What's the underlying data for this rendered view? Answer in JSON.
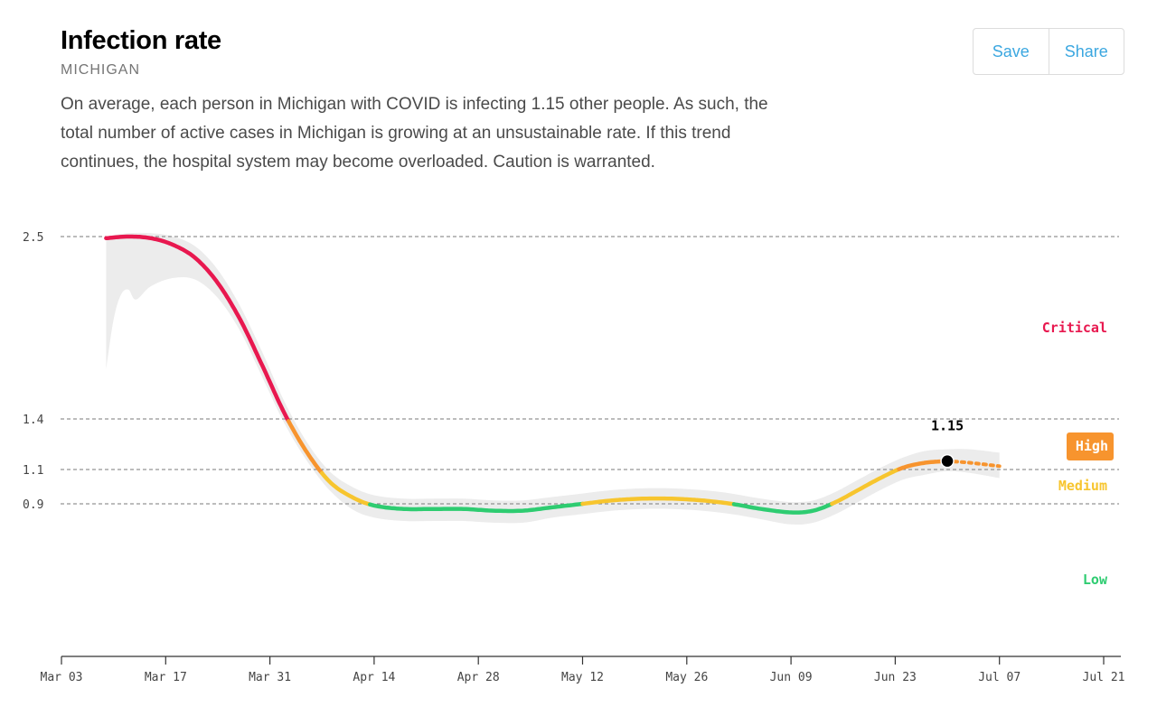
{
  "header": {
    "title": "Infection rate",
    "subtitle": "MICHIGAN",
    "description": "On average, each person in Michigan with COVID is infecting 1.15 other people. As such, the total number of active cases in Michigan is growing at an unsustainable rate. If this trend continues, the hospital system may become overloaded. Caution is warranted."
  },
  "actions": {
    "save_label": "Save",
    "share_label": "Share"
  },
  "chart_data": {
    "type": "line",
    "title": "Infection rate",
    "xlabel": "",
    "ylabel": "",
    "x_ticks": [
      "Mar 03",
      "Mar 17",
      "Mar 31",
      "Apr 14",
      "Apr 28",
      "May 12",
      "May 26",
      "Jun 09",
      "Jun 23",
      "Jul 07",
      "Jul 21"
    ],
    "y_ticks": [
      0.9,
      1.1,
      1.4,
      2.5
    ],
    "y_tick_labels": [
      "0.9",
      "1.1",
      "1.4",
      "2.5"
    ],
    "xlim": [
      "2020-03-03",
      "2020-07-21"
    ],
    "grid": "dashed horizontal lines at thresholds",
    "zones": [
      {
        "label": "Critical",
        "color": "#e8184f",
        "min": 1.4
      },
      {
        "label": "High",
        "color": "#f7942e",
        "min": 1.1,
        "max": 1.4,
        "badge": true
      },
      {
        "label": "Medium",
        "color": "#f7c52e",
        "min": 0.9,
        "max": 1.1
      },
      {
        "label": "Low",
        "color": "#2ecc71",
        "max": 0.9
      }
    ],
    "series": [
      {
        "points": [
          {
            "date": "2020-03-09",
            "y": 2.49
          },
          {
            "date": "2020-03-12",
            "y": 2.5
          },
          {
            "date": "2020-03-15",
            "y": 2.49
          },
          {
            "date": "2020-03-18",
            "y": 2.45
          },
          {
            "date": "2020-03-21",
            "y": 2.37
          },
          {
            "date": "2020-03-24",
            "y": 2.22
          },
          {
            "date": "2020-03-27",
            "y": 2.0
          },
          {
            "date": "2020-03-30",
            "y": 1.72
          },
          {
            "date": "2020-04-02",
            "y": 1.43
          },
          {
            "date": "2020-04-05",
            "y": 1.2
          },
          {
            "date": "2020-04-08",
            "y": 1.03
          },
          {
            "date": "2020-04-11",
            "y": 0.94
          },
          {
            "date": "2020-04-14",
            "y": 0.89
          },
          {
            "date": "2020-04-18",
            "y": 0.87
          },
          {
            "date": "2020-04-22",
            "y": 0.87
          },
          {
            "date": "2020-04-26",
            "y": 0.87
          },
          {
            "date": "2020-04-30",
            "y": 0.86
          },
          {
            "date": "2020-05-04",
            "y": 0.86
          },
          {
            "date": "2020-05-08",
            "y": 0.88
          },
          {
            "date": "2020-05-12",
            "y": 0.9
          },
          {
            "date": "2020-05-16",
            "y": 0.92
          },
          {
            "date": "2020-05-20",
            "y": 0.93
          },
          {
            "date": "2020-05-24",
            "y": 0.93
          },
          {
            "date": "2020-05-28",
            "y": 0.92
          },
          {
            "date": "2020-06-01",
            "y": 0.9
          },
          {
            "date": "2020-06-05",
            "y": 0.87
          },
          {
            "date": "2020-06-09",
            "y": 0.85
          },
          {
            "date": "2020-06-12",
            "y": 0.86
          },
          {
            "date": "2020-06-15",
            "y": 0.91
          },
          {
            "date": "2020-06-18",
            "y": 0.98
          },
          {
            "date": "2020-06-21",
            "y": 1.05
          },
          {
            "date": "2020-06-24",
            "y": 1.11
          },
          {
            "date": "2020-06-27",
            "y": 1.14
          },
          {
            "date": "2020-06-30",
            "y": 1.15
          }
        ],
        "forecast": [
          {
            "date": "2020-06-30",
            "y": 1.15
          },
          {
            "date": "2020-07-03",
            "y": 1.14
          },
          {
            "date": "2020-07-07",
            "y": 1.12
          }
        ],
        "band_lower": [
          {
            "date": "2020-03-09",
            "y": 1.7
          },
          {
            "date": "2020-03-10",
            "y": 2.0
          },
          {
            "date": "2020-03-11",
            "y": 2.15
          },
          {
            "date": "2020-03-12",
            "y": 2.18
          },
          {
            "date": "2020-03-13",
            "y": 2.12
          },
          {
            "date": "2020-03-15",
            "y": 2.2
          },
          {
            "date": "2020-03-18",
            "y": 2.25
          },
          {
            "date": "2020-03-21",
            "y": 2.24
          },
          {
            "date": "2020-03-24",
            "y": 2.13
          },
          {
            "date": "2020-03-27",
            "y": 1.93
          },
          {
            "date": "2020-03-30",
            "y": 1.65
          },
          {
            "date": "2020-04-02",
            "y": 1.37
          },
          {
            "date": "2020-04-05",
            "y": 1.15
          },
          {
            "date": "2020-04-08",
            "y": 0.98
          },
          {
            "date": "2020-04-11",
            "y": 0.87
          },
          {
            "date": "2020-04-14",
            "y": 0.82
          },
          {
            "date": "2020-04-18",
            "y": 0.8
          },
          {
            "date": "2020-04-22",
            "y": 0.8
          },
          {
            "date": "2020-04-26",
            "y": 0.8
          },
          {
            "date": "2020-04-30",
            "y": 0.79
          },
          {
            "date": "2020-05-04",
            "y": 0.79
          },
          {
            "date": "2020-05-08",
            "y": 0.82
          },
          {
            "date": "2020-05-12",
            "y": 0.84
          },
          {
            "date": "2020-05-16",
            "y": 0.86
          },
          {
            "date": "2020-05-20",
            "y": 0.87
          },
          {
            "date": "2020-05-24",
            "y": 0.87
          },
          {
            "date": "2020-05-28",
            "y": 0.86
          },
          {
            "date": "2020-06-01",
            "y": 0.84
          },
          {
            "date": "2020-06-05",
            "y": 0.81
          },
          {
            "date": "2020-06-09",
            "y": 0.78
          },
          {
            "date": "2020-06-12",
            "y": 0.79
          },
          {
            "date": "2020-06-15",
            "y": 0.84
          },
          {
            "date": "2020-06-18",
            "y": 0.91
          },
          {
            "date": "2020-06-21",
            "y": 0.98
          },
          {
            "date": "2020-06-24",
            "y": 1.04
          },
          {
            "date": "2020-06-27",
            "y": 1.07
          },
          {
            "date": "2020-06-30",
            "y": 1.09
          },
          {
            "date": "2020-07-03",
            "y": 1.08
          },
          {
            "date": "2020-07-07",
            "y": 1.05
          }
        ],
        "band_upper": [
          {
            "date": "2020-03-09",
            "y": 2.5
          },
          {
            "date": "2020-03-12",
            "y": 2.52
          },
          {
            "date": "2020-03-15",
            "y": 2.52
          },
          {
            "date": "2020-03-18",
            "y": 2.5
          },
          {
            "date": "2020-03-21",
            "y": 2.44
          },
          {
            "date": "2020-03-24",
            "y": 2.3
          },
          {
            "date": "2020-03-27",
            "y": 2.08
          },
          {
            "date": "2020-03-30",
            "y": 1.8
          },
          {
            "date": "2020-04-02",
            "y": 1.5
          },
          {
            "date": "2020-04-05",
            "y": 1.26
          },
          {
            "date": "2020-04-08",
            "y": 1.09
          },
          {
            "date": "2020-04-11",
            "y": 1.0
          },
          {
            "date": "2020-04-14",
            "y": 0.95
          },
          {
            "date": "2020-04-18",
            "y": 0.93
          },
          {
            "date": "2020-04-22",
            "y": 0.93
          },
          {
            "date": "2020-04-26",
            "y": 0.93
          },
          {
            "date": "2020-04-30",
            "y": 0.92
          },
          {
            "date": "2020-05-04",
            "y": 0.92
          },
          {
            "date": "2020-05-08",
            "y": 0.94
          },
          {
            "date": "2020-05-12",
            "y": 0.96
          },
          {
            "date": "2020-05-16",
            "y": 0.98
          },
          {
            "date": "2020-05-20",
            "y": 0.99
          },
          {
            "date": "2020-05-24",
            "y": 0.99
          },
          {
            "date": "2020-05-28",
            "y": 0.98
          },
          {
            "date": "2020-06-01",
            "y": 0.96
          },
          {
            "date": "2020-06-05",
            "y": 0.93
          },
          {
            "date": "2020-06-09",
            "y": 0.91
          },
          {
            "date": "2020-06-12",
            "y": 0.92
          },
          {
            "date": "2020-06-15",
            "y": 0.97
          },
          {
            "date": "2020-06-18",
            "y": 1.04
          },
          {
            "date": "2020-06-21",
            "y": 1.11
          },
          {
            "date": "2020-06-24",
            "y": 1.17
          },
          {
            "date": "2020-06-27",
            "y": 1.21
          },
          {
            "date": "2020-06-30",
            "y": 1.22
          },
          {
            "date": "2020-07-03",
            "y": 1.22
          },
          {
            "date": "2020-07-07",
            "y": 1.2
          }
        ]
      }
    ],
    "current": {
      "date": "2020-06-30",
      "y": 1.15,
      "label": "1.15"
    }
  }
}
